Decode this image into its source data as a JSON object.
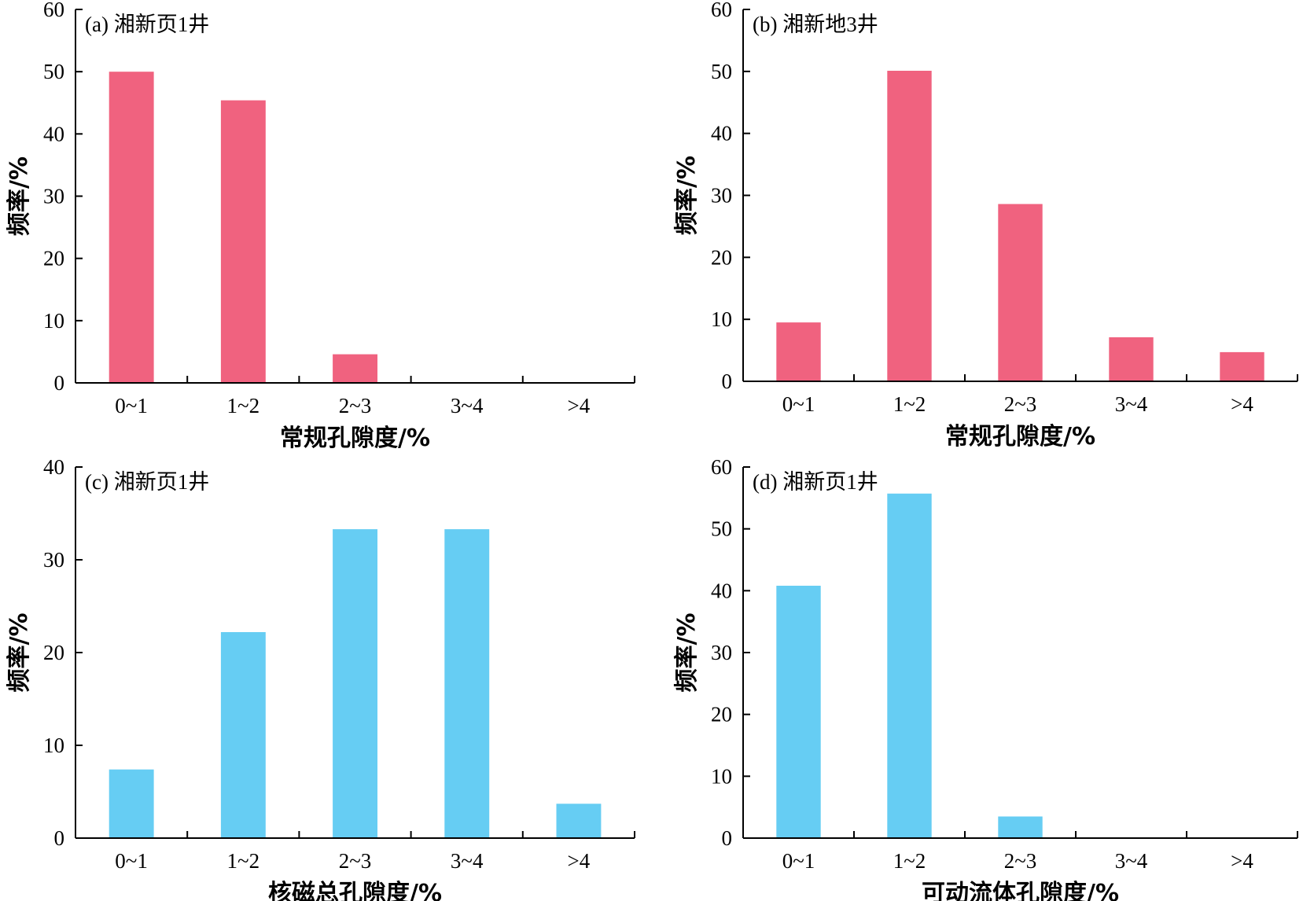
{
  "chart_data": [
    {
      "type": "bar",
      "title": "(a) 湘新页1井",
      "categories": [
        "0~1",
        "1~2",
        "2~3",
        "3~4",
        ">4"
      ],
      "values": [
        50,
        45.4,
        4.6,
        0,
        0
      ],
      "xlabel": "常规孔隙度/%",
      "ylabel": "频率/%",
      "ylim": [
        0,
        60
      ],
      "yticks": [
        0,
        10,
        20,
        30,
        40,
        50,
        60
      ],
      "color": "#f0627f",
      "grid": false
    },
    {
      "type": "bar",
      "title": "(b) 湘新地3井",
      "categories": [
        "0~1",
        "1~2",
        "2~3",
        "3~4",
        ">4"
      ],
      "values": [
        9.5,
        50.1,
        28.6,
        7.1,
        4.7
      ],
      "xlabel": "常规孔隙度/%",
      "ylabel": "频率/%",
      "ylim": [
        0,
        60
      ],
      "yticks": [
        0,
        10,
        20,
        30,
        40,
        50,
        60
      ],
      "color": "#f0627f",
      "grid": false
    },
    {
      "type": "bar",
      "title": "(c) 湘新页1井",
      "categories": [
        "0~1",
        "1~2",
        "2~3",
        "3~4",
        ">4"
      ],
      "values": [
        7.4,
        22.2,
        33.3,
        33.3,
        3.7
      ],
      "xlabel": "核磁总孔隙度/%",
      "ylabel": "频率/%",
      "ylim": [
        0,
        40
      ],
      "yticks": [
        0,
        10,
        20,
        30,
        40
      ],
      "color": "#66cdf3",
      "grid": false
    },
    {
      "type": "bar",
      "title": "(d) 湘新页1井",
      "categories": [
        "0~1",
        "1~2",
        "2~3",
        "3~4",
        ">4"
      ],
      "values": [
        40.8,
        55.7,
        3.5,
        0,
        0
      ],
      "xlabel": "可动流体孔隙度/%",
      "ylabel": "频率/%",
      "ylim": [
        0,
        60
      ],
      "yticks": [
        0,
        10,
        20,
        30,
        40,
        50,
        60
      ],
      "color": "#66cdf3",
      "grid": false
    }
  ]
}
